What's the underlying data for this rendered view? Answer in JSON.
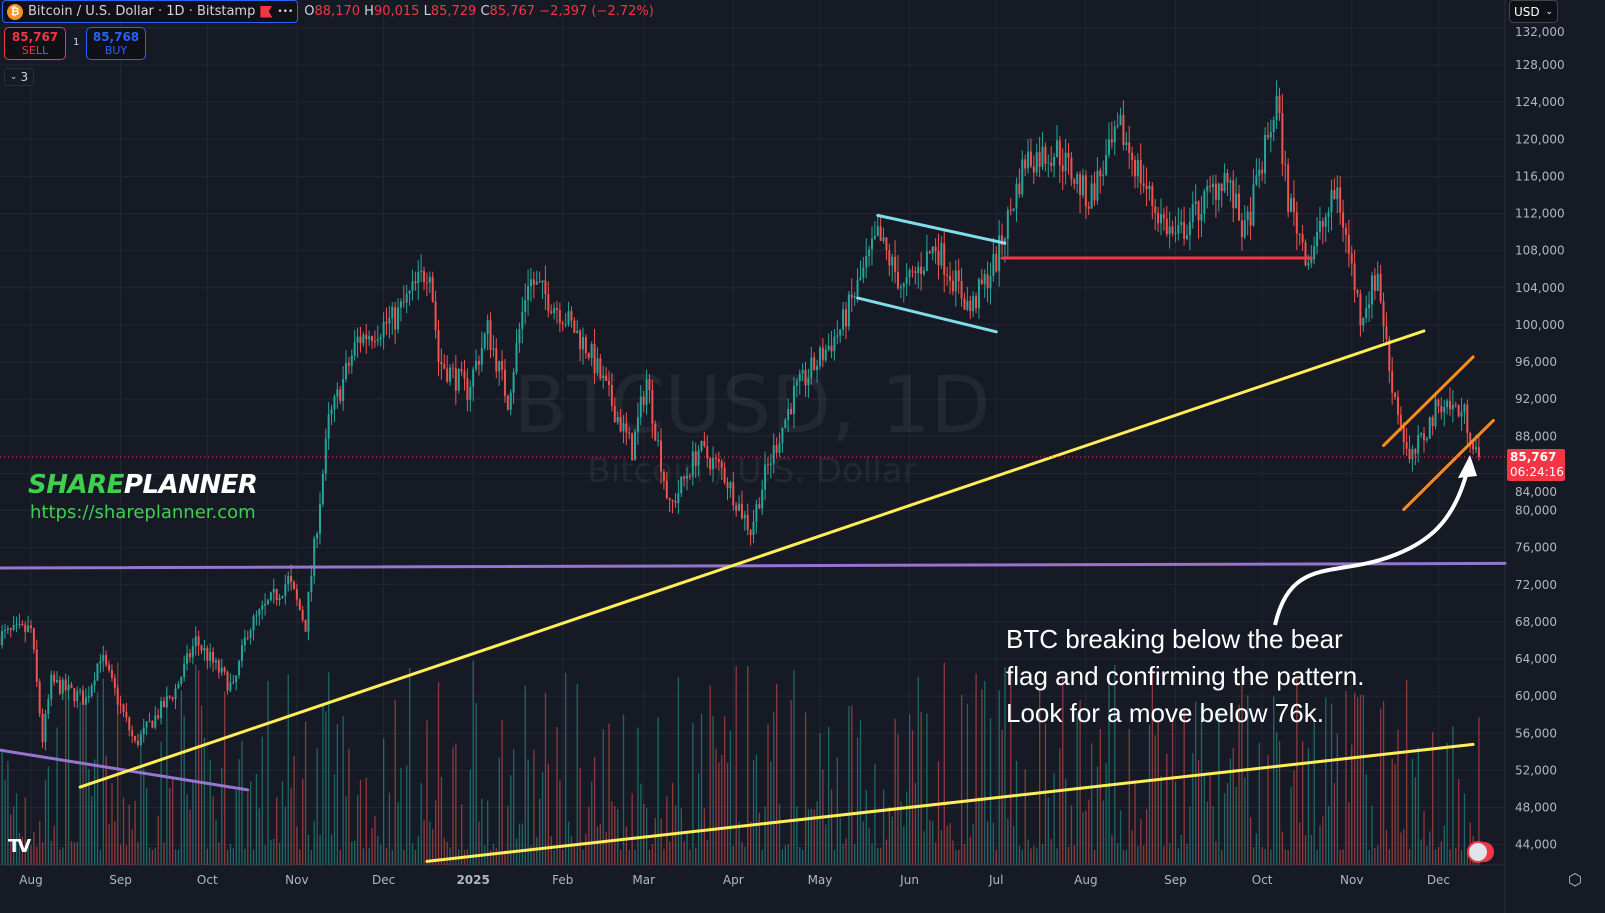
{
  "header": {
    "symbol_title": "Bitcoin / U.S. Dollar · 1D · Bitstamp",
    "more_label": "•••",
    "open_label": "O",
    "open": "88,170",
    "high_label": "H",
    "high": "90,015",
    "low_label": "L",
    "low": "85,729",
    "close_label": "C",
    "close": "85,767",
    "change": "−2,397 (−2.72%)"
  },
  "trade": {
    "sell_price": "85,767",
    "sell_label": "SELL",
    "buy_price": "85,768",
    "buy_label": "BUY",
    "quantity": "1"
  },
  "indicators": {
    "count": "3"
  },
  "currency": "USD",
  "branding": {
    "logo_green": "SHARE",
    "logo_white": "PLANNER",
    "url": "https://shareplanner.com"
  },
  "annotation": {
    "lines": [
      "BTC breaking below the bear",
      "flag and confirming the pattern.",
      "Look for a move below 76k."
    ]
  },
  "price_label": {
    "price": "85,767",
    "countdown": "06:24:16"
  },
  "watermark": {
    "symbol": "BTCUSD, 1D",
    "name": "Bitcoin / U.S. Dollar"
  },
  "colors": {
    "background": "#161a25",
    "up": "#26a69a",
    "down": "#ef5350",
    "grid": "#232734"
  },
  "chart_data": {
    "type": "candlestick",
    "title": "Bitcoin / U.S. Dollar · 1D · Bitstamp",
    "ylim": [
      42000,
      133000
    ],
    "y_ticks": [
      44000,
      48000,
      52000,
      56000,
      60000,
      64000,
      68000,
      72000,
      76000,
      80000,
      84000,
      88000,
      92000,
      96000,
      100000,
      104000,
      108000,
      112000,
      116000,
      120000,
      124000,
      128000,
      132000
    ],
    "y_tick_labels": [
      "44,000",
      "48,000",
      "52,000",
      "56,000",
      "60,000",
      "64,000",
      "68,000",
      "72,000",
      "76,000",
      "80,000",
      "84,000",
      "88,000",
      "92,000",
      "96,000",
      "100,000",
      "104,000",
      "108,000",
      "112,000",
      "116,000",
      "120,000",
      "124,000",
      "128,000",
      "132,000"
    ],
    "x_ticks": [
      {
        "date": "2024-08-01",
        "label": "Aug"
      },
      {
        "date": "2024-09-01",
        "label": "Sep"
      },
      {
        "date": "2024-10-01",
        "label": "Oct"
      },
      {
        "date": "2024-11-01",
        "label": "Nov"
      },
      {
        "date": "2024-12-01",
        "label": "Dec"
      },
      {
        "date": "2025-01-01",
        "label": "2025"
      },
      {
        "date": "2025-02-01",
        "label": "Feb"
      },
      {
        "date": "2025-03-01",
        "label": "Mar"
      },
      {
        "date": "2025-04-01",
        "label": "Apr"
      },
      {
        "date": "2025-05-01",
        "label": "May"
      },
      {
        "date": "2025-06-01",
        "label": "Jun"
      },
      {
        "date": "2025-07-01",
        "label": "Jul"
      },
      {
        "date": "2025-08-01",
        "label": "Aug"
      },
      {
        "date": "2025-09-01",
        "label": "Sep"
      },
      {
        "date": "2025-10-01",
        "label": "Oct"
      },
      {
        "date": "2025-11-01",
        "label": "Nov"
      },
      {
        "date": "2025-12-01",
        "label": "Dec"
      }
    ],
    "x_range": [
      "2024-07-21",
      "2025-12-24"
    ],
    "approx_closes": [
      [
        "2024-07-21",
        66500
      ],
      [
        "2024-08-01",
        67200
      ],
      [
        "2024-08-05",
        55300
      ],
      [
        "2024-08-08",
        61500
      ],
      [
        "2024-08-20",
        59600
      ],
      [
        "2024-08-25",
        64500
      ],
      [
        "2024-09-06",
        54800
      ],
      [
        "2024-09-20",
        60700
      ],
      [
        "2024-09-27",
        66000
      ],
      [
        "2024-10-10",
        60700
      ],
      [
        "2024-10-15",
        67200
      ],
      [
        "2024-10-29",
        72500
      ],
      [
        "2024-11-04",
        67700
      ],
      [
        "2024-11-12",
        89500
      ],
      [
        "2024-11-22",
        98400
      ],
      [
        "2024-12-05",
        100700
      ],
      [
        "2024-12-17",
        106500
      ],
      [
        "2024-12-20",
        96200
      ],
      [
        "2024-12-30",
        93000
      ],
      [
        "2025-01-06",
        99500
      ],
      [
        "2025-01-13",
        91900
      ],
      [
        "2025-01-20",
        105000
      ],
      [
        "2025-01-31",
        101600
      ],
      [
        "2025-02-10",
        97300
      ],
      [
        "2025-02-25",
        86500
      ],
      [
        "2025-03-02",
        94100
      ],
      [
        "2025-03-10",
        80100
      ],
      [
        "2025-03-20",
        86600
      ],
      [
        "2025-03-28",
        84400
      ],
      [
        "2025-04-07",
        77900
      ],
      [
        "2025-04-12",
        83800
      ],
      [
        "2025-04-22",
        92500
      ],
      [
        "2025-05-08",
        99500
      ],
      [
        "2025-05-21",
        109500
      ],
      [
        "2025-05-30",
        103800
      ],
      [
        "2025-06-10",
        108600
      ],
      [
        "2025-06-22",
        101600
      ],
      [
        "2025-07-01",
        107000
      ],
      [
        "2025-07-11",
        117800
      ],
      [
        "2025-07-22",
        118800
      ],
      [
        "2025-08-02",
        113500
      ],
      [
        "2025-08-13",
        121000
      ],
      [
        "2025-08-25",
        112500
      ],
      [
        "2025-09-01",
        109200
      ],
      [
        "2025-09-18",
        116200
      ],
      [
        "2025-09-25",
        109700
      ],
      [
        "2025-10-06",
        124000
      ],
      [
        "2025-10-10",
        113500
      ],
      [
        "2025-10-17",
        107100
      ],
      [
        "2025-10-27",
        114500
      ],
      [
        "2025-11-04",
        101000
      ],
      [
        "2025-11-10",
        105500
      ],
      [
        "2025-11-14",
        95200
      ],
      [
        "2025-11-21",
        85000
      ],
      [
        "2025-12-02",
        91900
      ],
      [
        "2025-12-10",
        90300
      ],
      [
        "2025-12-15",
        85767
      ]
    ],
    "last_price": 85767,
    "drawings": [
      {
        "kind": "horizontal-support",
        "color": "#9575cd",
        "from": [
          "2024-07-21",
          73800
        ],
        "to": [
          "2025-12-24",
          74300
        ]
      },
      {
        "kind": "trendline",
        "color": "#9575cd",
        "from": [
          "2024-07-21",
          54200
        ],
        "to": [
          "2024-10-15",
          49900
        ]
      },
      {
        "kind": "trendline",
        "color": "#ffee58",
        "from": [
          "2024-08-18",
          50200
        ],
        "to": [
          "2025-11-26",
          99350
        ]
      },
      {
        "kind": "trendline",
        "color": "#ffee58",
        "from": [
          "2024-12-16",
          42200
        ],
        "to": [
          "2025-12-13",
          54800
        ]
      },
      {
        "kind": "flag-upper",
        "color": "#80deea",
        "from": [
          "2025-05-21",
          111800
        ],
        "to": [
          "2025-07-04",
          108800
        ]
      },
      {
        "kind": "flag-lower",
        "color": "#80deea",
        "from": [
          "2025-05-14",
          102900
        ],
        "to": [
          "2025-07-01",
          99250
        ]
      },
      {
        "kind": "horizontal-resistance",
        "color": "#f23645",
        "from": [
          "2025-07-03",
          107200
        ],
        "to": [
          "2025-10-18",
          107200
        ]
      },
      {
        "kind": "bear-flag-upper",
        "color": "#ff8c1a",
        "from": [
          "2025-11-12",
          87000
        ],
        "to": [
          "2025-12-13",
          96550
        ]
      },
      {
        "kind": "bear-flag-lower",
        "color": "#ff8c1a",
        "from": [
          "2025-11-19",
          80100
        ],
        "to": [
          "2025-12-20",
          89700
        ]
      }
    ]
  }
}
